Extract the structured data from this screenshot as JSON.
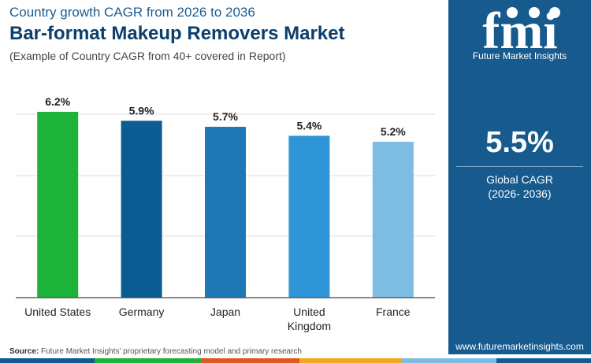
{
  "header": {
    "subtitle": "Country growth CAGR from 2026 to 2036",
    "title": "Bar-format Makeup Removers Market",
    "note": "(Example of Country CAGR from 40+ covered in Report)"
  },
  "chart_data": {
    "type": "bar",
    "categories": [
      "United States",
      "Germany",
      "Japan",
      "United Kingdom",
      "France"
    ],
    "category_lines": [
      [
        "United States"
      ],
      [
        "Germany"
      ],
      [
        "Japan"
      ],
      [
        "United",
        "Kingdom"
      ],
      [
        "France"
      ]
    ],
    "values": [
      6.2,
      5.9,
      5.7,
      5.4,
      5.2
    ],
    "value_labels": [
      "6.2%",
      "5.9%",
      "5.7%",
      "5.4%",
      "5.2%"
    ],
    "bar_colors": [
      "#1db33a",
      "#0b5b94",
      "#1f77b6",
      "#2e95d6",
      "#7dbde3"
    ],
    "ylim": [
      0,
      6.2
    ],
    "grid": true
  },
  "side_panel": {
    "logo_text": "fmi",
    "logo_tagline": "Future Market Insights",
    "cagr_value": "5.5%",
    "cagr_label": "Global CAGR",
    "cagr_period": "(2026- 2036)",
    "website": "www.futuremarketinsights.com"
  },
  "source": {
    "label": "Source:",
    "text": "Future Market Insights' proprietary forecasting model and primary research"
  },
  "colors": {
    "panel": "#165a8e",
    "footer": [
      "#0b5b94",
      "#1db33a",
      "#e05a1e",
      "#f2a91c",
      "#7dbde3",
      "#165a8e"
    ]
  }
}
